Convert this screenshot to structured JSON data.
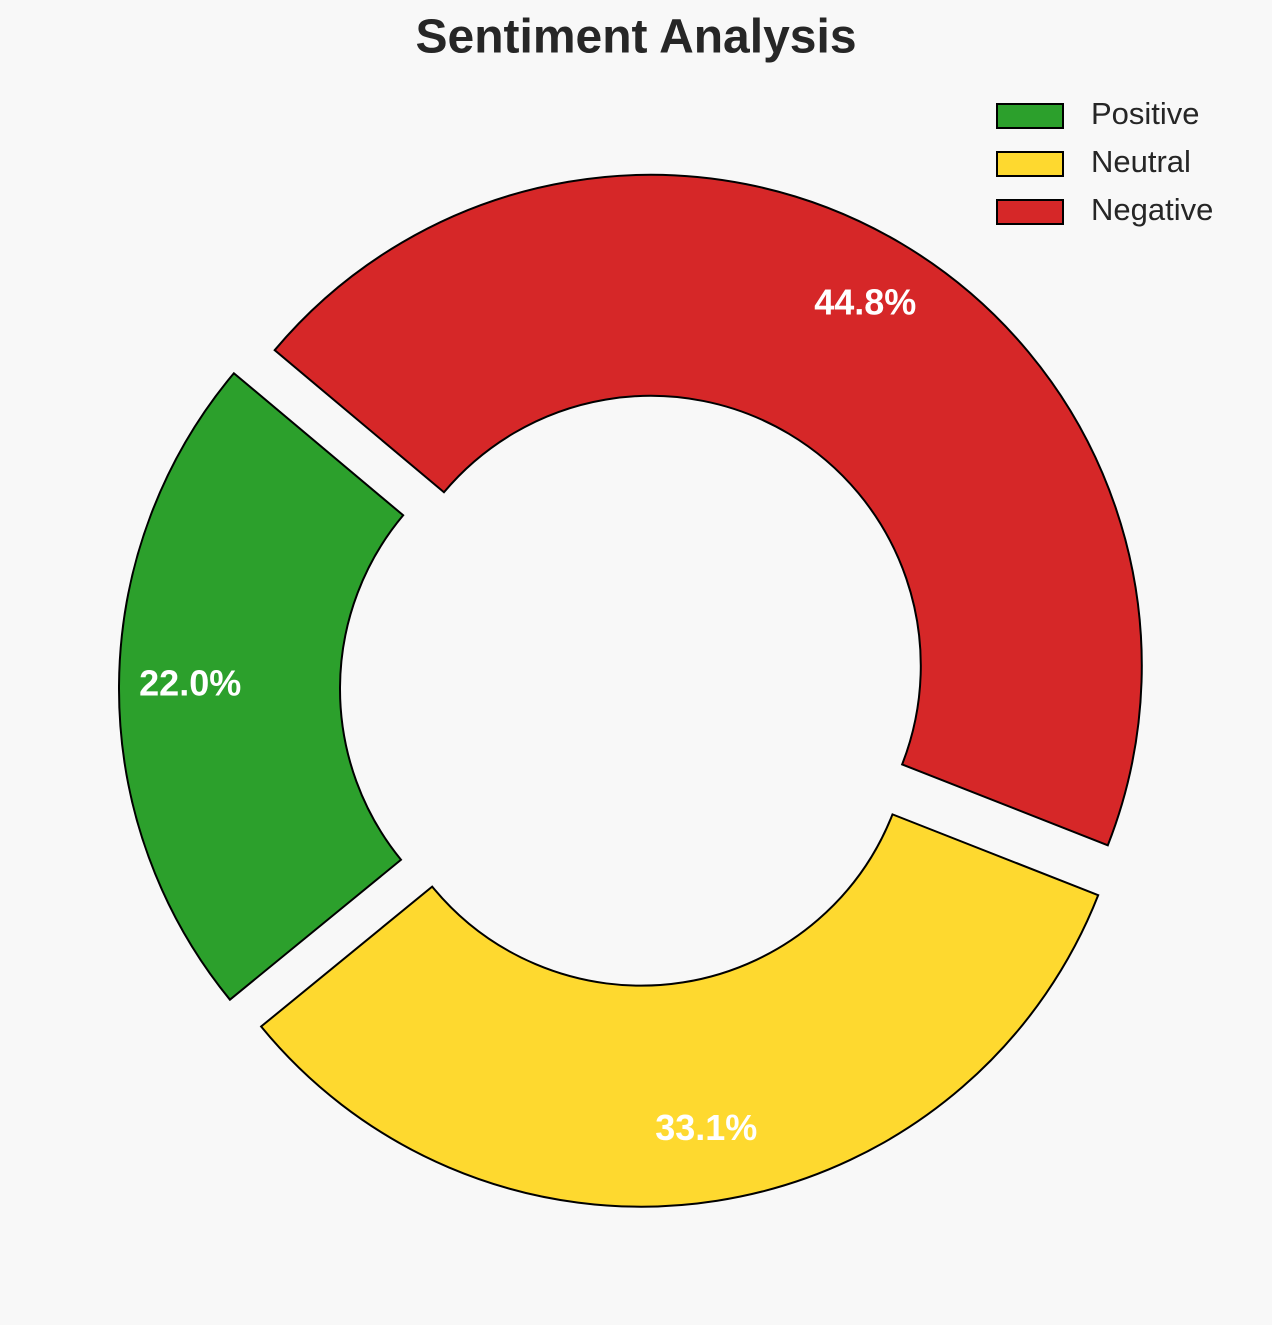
{
  "chart_data": {
    "type": "donut",
    "title": "Sentiment Analysis",
    "categories": [
      "Positive",
      "Neutral",
      "Negative"
    ],
    "values": [
      22.0,
      33.1,
      44.8
    ],
    "value_labels": [
      "22.0%",
      "33.1%",
      "44.8%"
    ],
    "colors": [
      "#2ca02c",
      "#fed92f",
      "#d62728"
    ],
    "legend": "upper right"
  }
}
